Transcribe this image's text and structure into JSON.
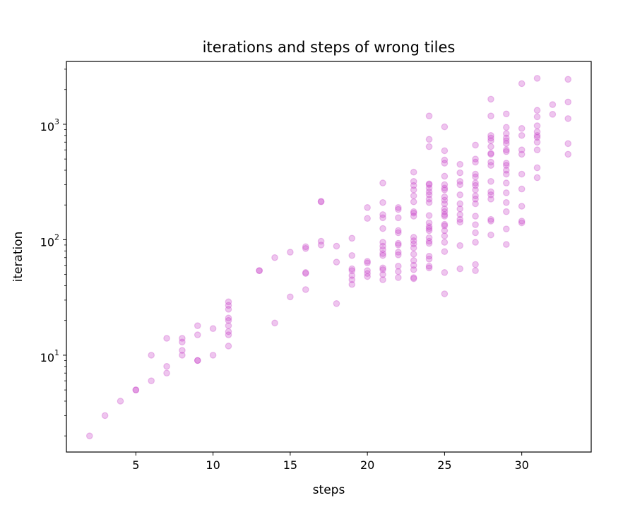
{
  "chart_data": {
    "type": "scatter",
    "title": "iterations and steps of wrong tiles",
    "xlabel": "steps",
    "ylabel": "iteration",
    "xlim": [
      0.5,
      34.5
    ],
    "ylim": [
      1.45,
      3500
    ],
    "yscale": "log",
    "x_ticks": [
      5,
      10,
      15,
      20,
      25,
      30
    ],
    "y_major_ticks": [
      10,
      100,
      1000
    ],
    "y_tick_labels": [
      {
        "base": "10",
        "exp": "1"
      },
      {
        "base": "10",
        "exp": "2"
      },
      {
        "base": "10",
        "exp": "3"
      }
    ],
    "marker_color": "#c740c7",
    "marker_opacity": 0.3,
    "grid": false,
    "points": [
      [
        2,
        2
      ],
      [
        3,
        3
      ],
      [
        4,
        4
      ],
      [
        5,
        5
      ],
      [
        5,
        5
      ],
      [
        6,
        6
      ],
      [
        6,
        10
      ],
      [
        7,
        7
      ],
      [
        7,
        8
      ],
      [
        7,
        14
      ],
      [
        8,
        10
      ],
      [
        8,
        11
      ],
      [
        8,
        13
      ],
      [
        8,
        14
      ],
      [
        9,
        9
      ],
      [
        9,
        9
      ],
      [
        9,
        15
      ],
      [
        9,
        18
      ],
      [
        10,
        10
      ],
      [
        10,
        17
      ],
      [
        11,
        12
      ],
      [
        11,
        15
      ],
      [
        11,
        16
      ],
      [
        11,
        18
      ],
      [
        11,
        20
      ],
      [
        11,
        21
      ],
      [
        11,
        25
      ],
      [
        11,
        27
      ],
      [
        11,
        29
      ],
      [
        13,
        54
      ],
      [
        13,
        54
      ],
      [
        14,
        19
      ],
      [
        14,
        70
      ],
      [
        15,
        32
      ],
      [
        15,
        78
      ],
      [
        16,
        37
      ],
      [
        16,
        51
      ],
      [
        16,
        52
      ],
      [
        16,
        84
      ],
      [
        16,
        87
      ],
      [
        17,
        90
      ],
      [
        17,
        97
      ],
      [
        17,
        213
      ],
      [
        17,
        215
      ],
      [
        18,
        28
      ],
      [
        18,
        64
      ],
      [
        18,
        88
      ],
      [
        19,
        41
      ],
      [
        19,
        45
      ],
      [
        19,
        49
      ],
      [
        19,
        54
      ],
      [
        19,
        56
      ],
      [
        19,
        73
      ],
      [
        19,
        103
      ],
      [
        20,
        48
      ],
      [
        20,
        51
      ],
      [
        20,
        54
      ],
      [
        20,
        63
      ],
      [
        20,
        65
      ],
      [
        20,
        153
      ],
      [
        20,
        190
      ],
      [
        21,
        45
      ],
      [
        21,
        50
      ],
      [
        21,
        55
      ],
      [
        21,
        57
      ],
      [
        21,
        73
      ],
      [
        21,
        76
      ],
      [
        21,
        82
      ],
      [
        21,
        88
      ],
      [
        21,
        95
      ],
      [
        21,
        125
      ],
      [
        21,
        155
      ],
      [
        21,
        165
      ],
      [
        21,
        210
      ],
      [
        21,
        310
      ],
      [
        22,
        47
      ],
      [
        22,
        53
      ],
      [
        22,
        59
      ],
      [
        22,
        74
      ],
      [
        22,
        78
      ],
      [
        22,
        90
      ],
      [
        22,
        93
      ],
      [
        22,
        115
      ],
      [
        22,
        120
      ],
      [
        22,
        155
      ],
      [
        22,
        183
      ],
      [
        22,
        190
      ],
      [
        23,
        46
      ],
      [
        23,
        47
      ],
      [
        23,
        55
      ],
      [
        23,
        60
      ],
      [
        23,
        66
      ],
      [
        23,
        75
      ],
      [
        23,
        85
      ],
      [
        23,
        92
      ],
      [
        23,
        98
      ],
      [
        23,
        105
      ],
      [
        23,
        160
      ],
      [
        23,
        170
      ],
      [
        23,
        175
      ],
      [
        23,
        213
      ],
      [
        23,
        240
      ],
      [
        23,
        270
      ],
      [
        23,
        295
      ],
      [
        23,
        320
      ],
      [
        23,
        385
      ],
      [
        24,
        57
      ],
      [
        24,
        59
      ],
      [
        24,
        68
      ],
      [
        24,
        72
      ],
      [
        24,
        93
      ],
      [
        24,
        97
      ],
      [
        24,
        104
      ],
      [
        24,
        120
      ],
      [
        24,
        125
      ],
      [
        24,
        130
      ],
      [
        24,
        140
      ],
      [
        24,
        162
      ],
      [
        24,
        210
      ],
      [
        24,
        225
      ],
      [
        24,
        245
      ],
      [
        24,
        260
      ],
      [
        24,
        280
      ],
      [
        24,
        300
      ],
      [
        24,
        305
      ],
      [
        24,
        640
      ],
      [
        24,
        740
      ],
      [
        24,
        1180
      ],
      [
        25,
        34
      ],
      [
        25,
        52
      ],
      [
        25,
        79
      ],
      [
        25,
        95
      ],
      [
        25,
        108
      ],
      [
        25,
        120
      ],
      [
        25,
        132
      ],
      [
        25,
        136
      ],
      [
        25,
        160
      ],
      [
        25,
        165
      ],
      [
        25,
        175
      ],
      [
        25,
        185
      ],
      [
        25,
        205
      ],
      [
        25,
        220
      ],
      [
        25,
        235
      ],
      [
        25,
        270
      ],
      [
        25,
        280
      ],
      [
        25,
        300
      ],
      [
        25,
        355
      ],
      [
        25,
        460
      ],
      [
        25,
        490
      ],
      [
        25,
        590
      ],
      [
        25,
        950
      ],
      [
        26,
        56
      ],
      [
        26,
        89
      ],
      [
        26,
        142
      ],
      [
        26,
        150
      ],
      [
        26,
        165
      ],
      [
        26,
        185
      ],
      [
        26,
        205
      ],
      [
        26,
        245
      ],
      [
        26,
        300
      ],
      [
        26,
        320
      ],
      [
        26,
        380
      ],
      [
        26,
        450
      ],
      [
        27,
        54
      ],
      [
        27,
        61
      ],
      [
        27,
        95
      ],
      [
        27,
        115
      ],
      [
        27,
        135
      ],
      [
        27,
        160
      ],
      [
        27,
        205
      ],
      [
        27,
        225
      ],
      [
        27,
        240
      ],
      [
        27,
        270
      ],
      [
        27,
        295
      ],
      [
        27,
        310
      ],
      [
        27,
        350
      ],
      [
        27,
        370
      ],
      [
        27,
        470
      ],
      [
        27,
        500
      ],
      [
        27,
        660
      ],
      [
        28,
        110
      ],
      [
        28,
        145
      ],
      [
        28,
        150
      ],
      [
        28,
        225
      ],
      [
        28,
        245
      ],
      [
        28,
        260
      ],
      [
        28,
        320
      ],
      [
        28,
        440
      ],
      [
        28,
        470
      ],
      [
        28,
        550
      ],
      [
        28,
        560
      ],
      [
        28,
        640
      ],
      [
        28,
        720
      ],
      [
        28,
        760
      ],
      [
        28,
        800
      ],
      [
        28,
        1180
      ],
      [
        28,
        1650
      ],
      [
        29,
        91
      ],
      [
        29,
        124
      ],
      [
        29,
        175
      ],
      [
        29,
        210
      ],
      [
        29,
        255
      ],
      [
        29,
        310
      ],
      [
        29,
        370
      ],
      [
        29,
        400
      ],
      [
        29,
        440
      ],
      [
        29,
        460
      ],
      [
        29,
        580
      ],
      [
        29,
        600
      ],
      [
        29,
        680
      ],
      [
        29,
        720
      ],
      [
        29,
        760
      ],
      [
        29,
        830
      ],
      [
        29,
        940
      ],
      [
        29,
        1230
      ],
      [
        30,
        140
      ],
      [
        30,
        145
      ],
      [
        30,
        195
      ],
      [
        30,
        275
      ],
      [
        30,
        370
      ],
      [
        30,
        550
      ],
      [
        30,
        600
      ],
      [
        30,
        800
      ],
      [
        30,
        920
      ],
      [
        30,
        2250
      ],
      [
        31,
        345
      ],
      [
        31,
        420
      ],
      [
        31,
        600
      ],
      [
        31,
        700
      ],
      [
        31,
        770
      ],
      [
        31,
        800
      ],
      [
        31,
        860
      ],
      [
        31,
        970
      ],
      [
        31,
        1160
      ],
      [
        31,
        1320
      ],
      [
        31,
        2500
      ],
      [
        32,
        1220
      ],
      [
        32,
        1480
      ],
      [
        33,
        550
      ],
      [
        33,
        680
      ],
      [
        33,
        1120
      ],
      [
        33,
        1560
      ],
      [
        33,
        2450
      ]
    ]
  }
}
